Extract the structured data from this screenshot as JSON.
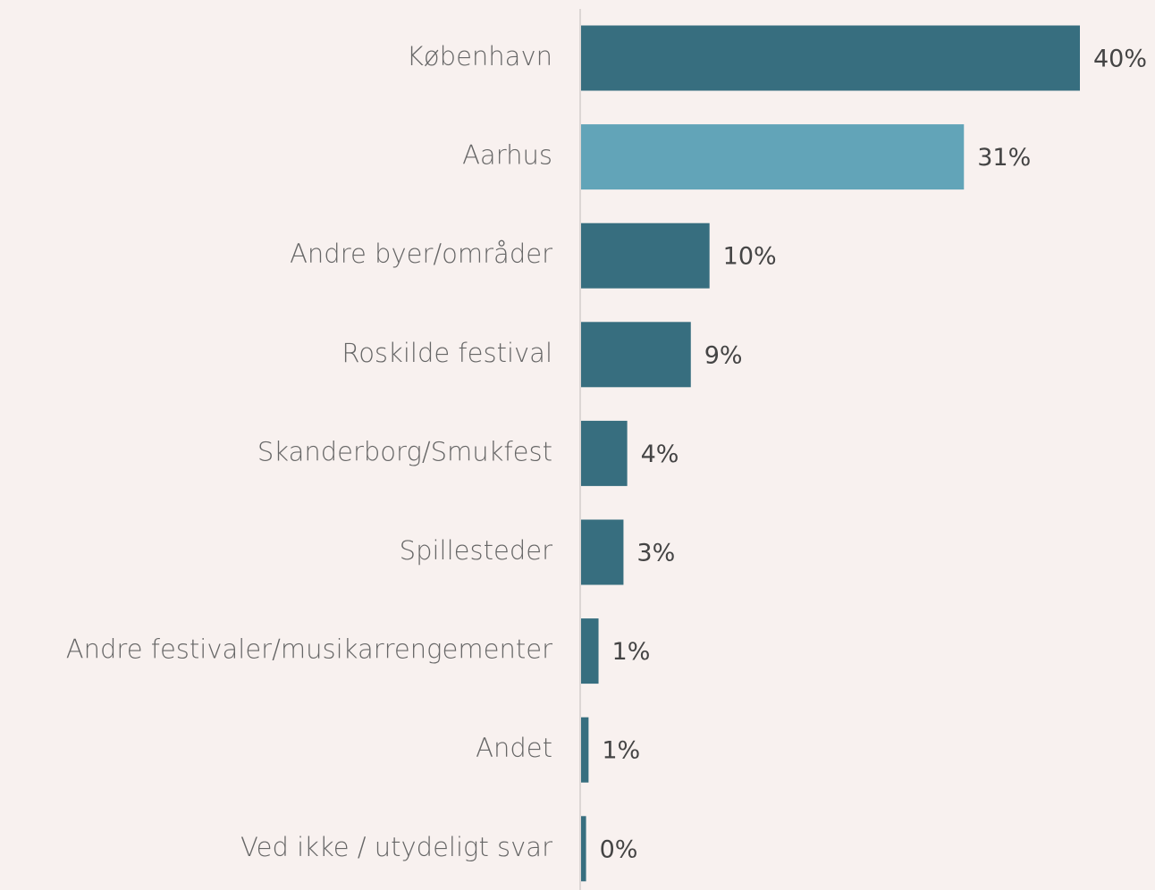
{
  "chart_data": {
    "type": "bar",
    "orientation": "horizontal",
    "categories": [
      "København",
      "Aarhus",
      "Andre byer/områder",
      "Roskilde festival",
      "Skanderborg/Smukfest",
      "Spillesteder",
      "Andre festivaler/musikarrengementer",
      "Andet",
      "Ved ikke / utydeligt svar"
    ],
    "values": [
      40,
      30.7,
      10.3,
      8.8,
      3.7,
      3.4,
      1.4,
      0.6,
      0.4
    ],
    "value_labels": [
      "40%",
      "31%",
      "10%",
      "9%",
      "4%",
      "3%",
      "1%",
      "1%",
      "0%"
    ],
    "colors": [
      "#376e7f",
      "#62a4b8",
      "#376e7f",
      "#376e7f",
      "#376e7f",
      "#376e7f",
      "#376e7f",
      "#376e7f",
      "#376e7f"
    ]
  }
}
